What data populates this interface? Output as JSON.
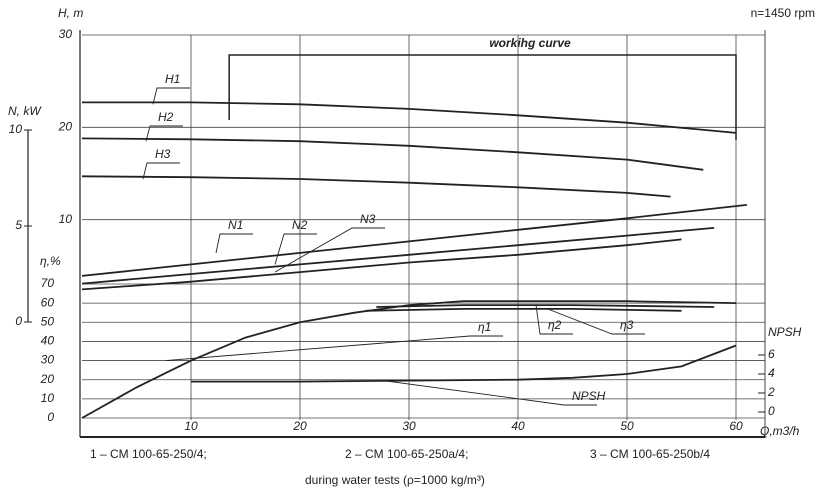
{
  "chart_data": {
    "type": "line",
    "title": "workihg curve",
    "subtitle": "n=1450 rpm",
    "working_curve": [
      13.5,
      60
    ],
    "xlabel": "Q,m3/h",
    "xlim": [
      0,
      62
    ],
    "xticks": [
      10,
      20,
      30,
      40,
      50,
      60
    ],
    "grid": true,
    "color": "#222222",
    "y_axes": [
      {
        "label": "H, m",
        "ylim": [
          0,
          30
        ],
        "yticks": [
          10,
          20,
          30
        ]
      },
      {
        "label": "N, kW",
        "ylim": [
          0,
          10
        ],
        "yticks": [
          0,
          5,
          10
        ]
      },
      {
        "label": "η,%",
        "ylim": [
          0,
          70
        ],
        "yticks": [
          0,
          10,
          20,
          30,
          40,
          50,
          60,
          70
        ]
      },
      {
        "label": "NPSH",
        "ylim": [
          0,
          6
        ],
        "yticks": [
          0,
          2,
          4,
          6
        ]
      }
    ],
    "series": [
      {
        "name": "H1",
        "axis": 0,
        "x": [
          0,
          10,
          20,
          30,
          40,
          50,
          60
        ],
        "values": [
          22.7,
          22.7,
          22.5,
          22,
          21.3,
          20.5,
          19.4
        ]
      },
      {
        "name": "H2",
        "axis": 0,
        "x": [
          0,
          10,
          20,
          30,
          40,
          50,
          57
        ],
        "values": [
          18.8,
          18.7,
          18.5,
          18,
          17.3,
          16.5,
          15.4
        ]
      },
      {
        "name": "H3",
        "axis": 0,
        "x": [
          0,
          10,
          20,
          30,
          40,
          50,
          54
        ],
        "values": [
          14.7,
          14.6,
          14.4,
          14,
          13.5,
          12.9,
          12.5
        ]
      },
      {
        "name": "N1",
        "axis": 1,
        "x": [
          0,
          10,
          20,
          30,
          40,
          50,
          61
        ],
        "values": [
          2.4,
          3,
          3.6,
          4.2,
          4.8,
          5.4,
          6.1
        ]
      },
      {
        "name": "N2",
        "axis": 1,
        "x": [
          0,
          10,
          20,
          30,
          40,
          50,
          58
        ],
        "values": [
          2,
          2.5,
          3,
          3.5,
          4,
          4.5,
          4.9
        ]
      },
      {
        "name": "N3",
        "axis": 1,
        "x": [
          0,
          10,
          20,
          30,
          40,
          50,
          55
        ],
        "values": [
          1.7,
          2.1,
          2.6,
          3.1,
          3.5,
          4,
          4.3
        ]
      },
      {
        "name": "η1",
        "axis": 2,
        "x": [
          0,
          5,
          10,
          15,
          20,
          25,
          30,
          35,
          40,
          50,
          60
        ],
        "values": [
          0,
          16,
          30,
          42,
          50,
          55,
          59,
          61,
          61,
          61,
          60
        ]
      },
      {
        "name": "η2",
        "axis": 2,
        "x": [
          27,
          35,
          45,
          58
        ],
        "values": [
          58,
          59,
          59,
          58
        ]
      },
      {
        "name": "η3",
        "axis": 2,
        "x": [
          26,
          35,
          45,
          55
        ],
        "values": [
          56,
          57,
          57,
          56
        ]
      },
      {
        "name": "NPSH",
        "axis": 3,
        "x": [
          10,
          20,
          30,
          40,
          45,
          50,
          55,
          60
        ],
        "values": [
          3.2,
          3.2,
          3.3,
          3.4,
          3.6,
          4,
          4.8,
          7
        ]
      }
    ],
    "notes": [
      "1 – CM 100-65-250/4;",
      "2 – CM 100-65-250a/4;",
      "3 – CM 100-65-250b/4",
      "during water tests (ρ=1000 kg/m³)"
    ]
  }
}
